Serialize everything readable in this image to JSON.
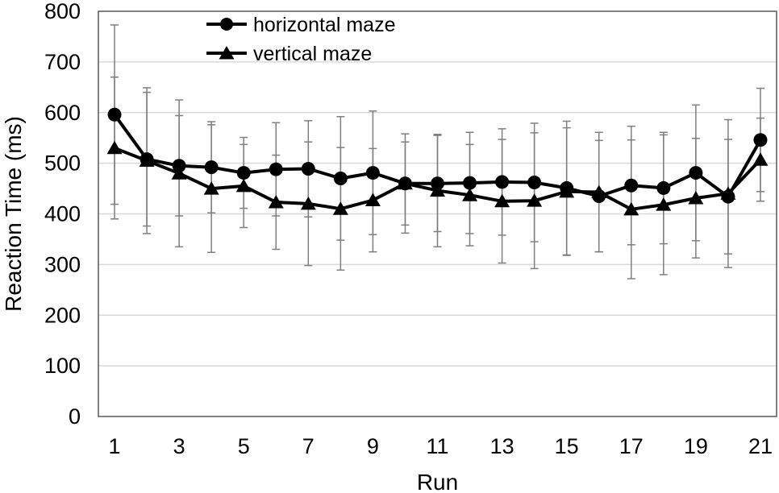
{
  "chart_data": {
    "type": "line",
    "title": "",
    "xlabel": "Run",
    "ylabel": "Reaction Time (ms)",
    "ylim": [
      0,
      800
    ],
    "yticks": [
      0,
      100,
      200,
      300,
      400,
      500,
      600,
      700,
      800
    ],
    "x": [
      1,
      2,
      3,
      4,
      5,
      6,
      7,
      8,
      9,
      10,
      11,
      12,
      13,
      14,
      15,
      16,
      17,
      18,
      19,
      20,
      21
    ],
    "xtick_labels": [
      "1",
      "3",
      "5",
      "7",
      "9",
      "11",
      "13",
      "15",
      "17",
      "19",
      "21"
    ],
    "grid": "horizontal",
    "legend_position": "top-center",
    "series": [
      {
        "name": "horizontal maze",
        "marker": "circle",
        "color": "#000000",
        "values": [
          596,
          508,
          495,
          492,
          481,
          488,
          489,
          470,
          481,
          460,
          460,
          461,
          463,
          462,
          451,
          435,
          456,
          451,
          481,
          434,
          546
        ],
        "error": [
          177,
          132,
          99,
          90,
          70,
          92,
          95,
          122,
          122,
          98,
          95,
          100,
          105,
          117,
          132,
          110,
          117,
          110,
          134,
          113,
          102
        ]
      },
      {
        "name": "vertical maze",
        "marker": "triangle",
        "color": "#000000",
        "values": [
          530,
          505,
          480,
          450,
          455,
          423,
          420,
          410,
          427,
          460,
          446,
          437,
          425,
          426,
          444,
          443,
          409,
          418,
          431,
          440,
          507
        ],
        "error": [
          140,
          144,
          145,
          126,
          82,
          93,
          122,
          121,
          102,
          82,
          111,
          100,
          122,
          134,
          126,
          118,
          137,
          138,
          118,
          146,
          82
        ]
      }
    ]
  }
}
